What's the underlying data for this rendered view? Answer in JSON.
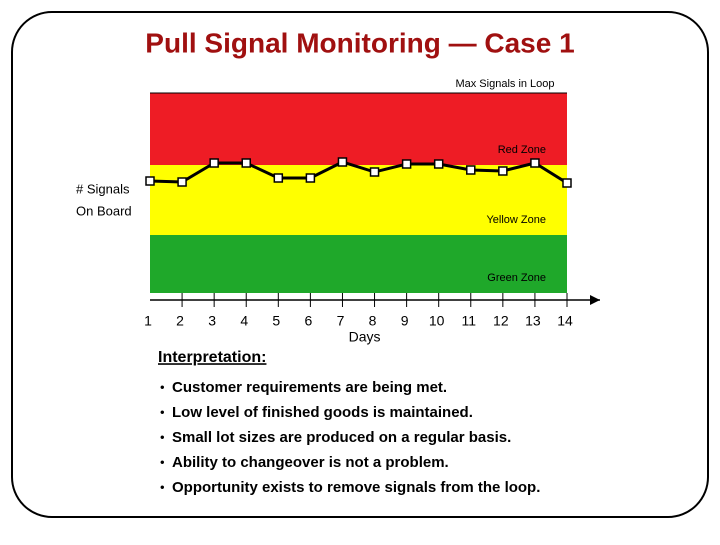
{
  "chart_data": {
    "type": "line",
    "title": "Pull Signal Monitoring — Case 1",
    "annotation": "Max Signals in Loop",
    "y_label": [
      "# Signals",
      "On Board"
    ],
    "x_label": "Days",
    "categories": [
      "1",
      "2",
      "3",
      "4",
      "5",
      "6",
      "7",
      "8",
      "9",
      "10",
      "11",
      "12",
      "13",
      "14"
    ],
    "values": [
      5.6,
      5.55,
      6.5,
      6.5,
      5.75,
      5.75,
      6.55,
      6.05,
      6.45,
      6.45,
      6.15,
      6.1,
      6.5,
      5.5
    ],
    "color": "#000000",
    "ylim": [
      0,
      10
    ],
    "zones": [
      {
        "name": "Red Zone",
        "color": "#ee1c25",
        "range": [
          6.4,
          10
        ]
      },
      {
        "name": "Yellow Zone",
        "color": "#ffff00",
        "range": [
          2.9,
          6.4
        ]
      },
      {
        "name": "Green Zone",
        "color": "#1fa82a",
        "range": [
          0,
          2.9
        ]
      }
    ]
  },
  "interpretation": {
    "heading": "Interpretation:",
    "items": [
      "Customer requirements are being met.",
      "Low level of finished goods is maintained.",
      "Small lot sizes are produced on a regular basis.",
      "Ability to changeover is not a problem.",
      "Opportunity exists to remove signals from the loop."
    ]
  }
}
